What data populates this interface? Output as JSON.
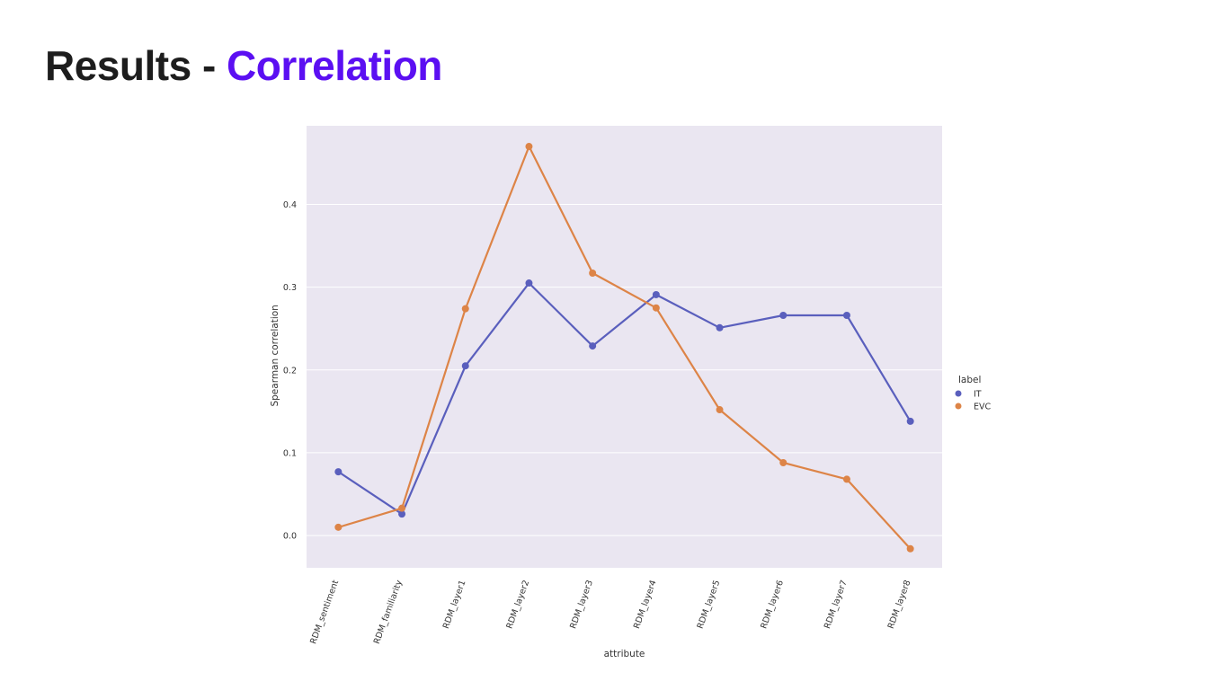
{
  "slide": {
    "title_prefix": "Results - ",
    "title_highlight": "Correlation",
    "title_highlight_color": "#5b0ff2"
  },
  "chart_data": {
    "type": "line",
    "categories": [
      "RDM_sentiment",
      "RDM_familiarity",
      "RDM_layer1",
      "RDM_layer2",
      "RDM_layer3",
      "RDM_layer4",
      "RDM_layer5",
      "RDM_layer6",
      "RDM_layer7",
      "RDM_layer8"
    ],
    "series": [
      {
        "name": "IT",
        "color": "#5a5fbd",
        "values": [
          0.077,
          0.026,
          0.205,
          0.305,
          0.229,
          0.291,
          0.251,
          0.266,
          0.266,
          0.138
        ]
      },
      {
        "name": "EVC",
        "color": "#dd8447",
        "values": [
          0.01,
          0.033,
          0.274,
          0.47,
          0.317,
          0.275,
          0.152,
          0.088,
          0.068,
          -0.016
        ]
      }
    ],
    "xlabel": "attribute",
    "ylabel": "Spearman correlation",
    "legend_title": "label",
    "legend_position": "right",
    "yticks": [
      0.0,
      0.1,
      0.2,
      0.3,
      0.4
    ],
    "ytick_labels": [
      "0.0",
      "0.1",
      "0.2",
      "0.3",
      "0.4"
    ],
    "ylim": [
      -0.039,
      0.495
    ],
    "grid": true,
    "background_color": "#eae6f1"
  }
}
